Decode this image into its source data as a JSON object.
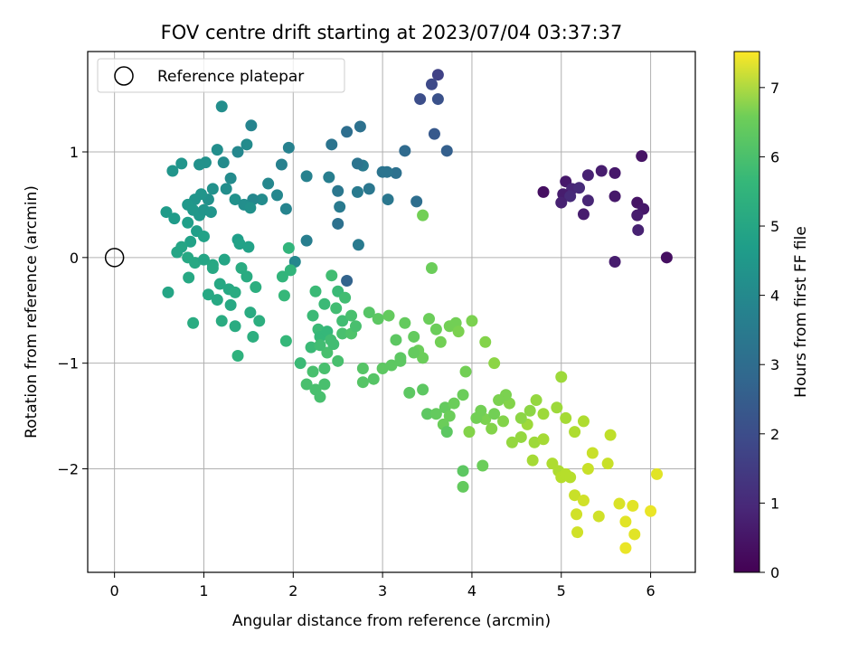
{
  "chart_data": {
    "type": "scatter",
    "title": "FOV centre drift starting at 2023/07/04 03:37:37",
    "xlabel": "Angular distance from reference (arcmin)",
    "ylabel": "Rotation from reference (arcmin)",
    "xlim": [
      -0.3,
      6.5
    ],
    "ylim": [
      -2.98,
      1.95
    ],
    "xticks": [
      0,
      1,
      2,
      3,
      4,
      5,
      6
    ],
    "yticks": [
      -2,
      -1,
      0,
      1
    ],
    "grid": true,
    "legend": {
      "placement": "top-left",
      "entries": [
        "Reference platepar"
      ]
    },
    "reference_point": {
      "x": 0,
      "y": 0
    },
    "colorbar": {
      "label": "Hours from first FF file",
      "range": [
        0,
        7.52
      ],
      "ticks": [
        0,
        1,
        2,
        3,
        4,
        5,
        6,
        7
      ],
      "colormap": "viridis"
    },
    "points": [
      [
        5.6,
        0.8,
        0.5
      ],
      [
        5.45,
        0.82,
        0.6
      ],
      [
        5.3,
        0.78,
        0.7
      ],
      [
        5.9,
        0.96,
        0.4
      ],
      [
        5.05,
        0.72,
        0.5
      ],
      [
        5.12,
        0.65,
        0.8
      ],
      [
        5.2,
        0.66,
        0.9
      ],
      [
        5.02,
        0.6,
        0.6
      ],
      [
        4.8,
        0.62,
        0.3
      ],
      [
        5.1,
        0.58,
        0.9
      ],
      [
        5.0,
        0.52,
        0.7
      ],
      [
        5.3,
        0.54,
        0.8
      ],
      [
        5.6,
        0.58,
        0.5
      ],
      [
        5.85,
        0.52,
        0.4
      ],
      [
        5.92,
        0.46,
        0.5
      ],
      [
        5.85,
        0.4,
        0.6
      ],
      [
        5.86,
        0.26,
        0.7
      ],
      [
        5.25,
        0.41,
        0.6
      ],
      [
        6.18,
        0.0,
        0.3
      ],
      [
        5.6,
        -0.04,
        0.6
      ],
      [
        3.62,
        1.73,
        1.5
      ],
      [
        3.55,
        1.64,
        1.7
      ],
      [
        3.42,
        1.5,
        1.8
      ],
      [
        3.62,
        1.5,
        1.9
      ],
      [
        3.58,
        1.17,
        2.1
      ],
      [
        3.72,
        1.01,
        2.3
      ],
      [
        3.25,
        1.01,
        2.6
      ],
      [
        3.38,
        0.53,
        2.7
      ],
      [
        3.15,
        0.8,
        2.8
      ],
      [
        3.05,
        0.81,
        2.9
      ],
      [
        3.0,
        0.81,
        2.9
      ],
      [
        3.06,
        0.55,
        3.0
      ],
      [
        2.85,
        0.65,
        3.0
      ],
      [
        2.72,
        0.62,
        3.1
      ],
      [
        2.78,
        0.87,
        3.1
      ],
      [
        2.72,
        0.89,
        2.9
      ],
      [
        2.75,
        1.24,
        2.8
      ],
      [
        2.6,
        1.19,
        2.7
      ],
      [
        2.43,
        1.07,
        2.9
      ],
      [
        2.52,
        0.48,
        3.1
      ],
      [
        2.5,
        0.32,
        2.8
      ],
      [
        2.5,
        0.63,
        3.0
      ],
      [
        2.4,
        0.76,
        3.2
      ],
      [
        2.73,
        0.12,
        3.1
      ],
      [
        2.6,
        -0.22,
        2.4
      ],
      [
        2.15,
        0.16,
        3.2
      ],
      [
        2.02,
        -0.04,
        3.5
      ],
      [
        2.15,
        0.77,
        3.3
      ],
      [
        1.95,
        1.04,
        3.3
      ],
      [
        1.87,
        0.88,
        3.3
      ],
      [
        1.92,
        0.46,
        3.4
      ],
      [
        1.82,
        0.59,
        3.5
      ],
      [
        1.72,
        0.7,
        3.5
      ],
      [
        1.65,
        0.55,
        3.6
      ],
      [
        1.55,
        0.55,
        3.5
      ],
      [
        1.53,
        1.25,
        3.4
      ],
      [
        1.48,
        1.07,
        3.6
      ],
      [
        1.38,
        1.0,
        3.5
      ],
      [
        1.2,
        1.43,
        3.7
      ],
      [
        1.15,
        1.02,
        3.7
      ],
      [
        1.22,
        0.9,
        3.6
      ],
      [
        1.3,
        0.75,
        3.6
      ],
      [
        1.25,
        0.65,
        3.7
      ],
      [
        1.35,
        0.55,
        3.8
      ],
      [
        1.45,
        0.5,
        3.7
      ],
      [
        1.52,
        0.47,
        3.8
      ],
      [
        1.1,
        0.65,
        3.8
      ],
      [
        1.05,
        0.55,
        3.8
      ],
      [
        0.97,
        0.6,
        3.9
      ],
      [
        0.9,
        0.55,
        3.9
      ],
      [
        0.82,
        0.5,
        4.0
      ],
      [
        0.88,
        0.45,
        4.0
      ],
      [
        0.95,
        0.4,
        4.0
      ],
      [
        1.0,
        0.45,
        3.9
      ],
      [
        1.08,
        0.43,
        3.9
      ],
      [
        1.02,
        0.9,
        3.8
      ],
      [
        0.95,
        0.88,
        3.8
      ],
      [
        0.75,
        0.89,
        3.9
      ],
      [
        0.65,
        0.82,
        3.9
      ],
      [
        0.58,
        0.43,
        4.1
      ],
      [
        0.67,
        0.37,
        4.1
      ],
      [
        0.82,
        0.33,
        4.2
      ],
      [
        0.92,
        0.25,
        4.2
      ],
      [
        1.0,
        0.2,
        4.3
      ],
      [
        0.85,
        0.15,
        4.3
      ],
      [
        0.75,
        0.1,
        4.4
      ],
      [
        0.7,
        0.05,
        4.4
      ],
      [
        0.82,
        0.0,
        4.5
      ],
      [
        0.9,
        -0.05,
        4.5
      ],
      [
        1.0,
        -0.02,
        4.4
      ],
      [
        1.1,
        -0.07,
        4.5
      ],
      [
        1.23,
        -0.02,
        4.4
      ],
      [
        1.38,
        0.17,
        4.2
      ],
      [
        1.4,
        0.13,
        4.3
      ],
      [
        1.5,
        0.1,
        4.3
      ],
      [
        1.42,
        -0.1,
        4.6
      ],
      [
        1.48,
        -0.18,
        4.6
      ],
      [
        1.58,
        -0.28,
        4.7
      ],
      [
        1.52,
        -0.52,
        4.6
      ],
      [
        1.62,
        -0.6,
        4.7
      ],
      [
        1.55,
        -0.75,
        4.7
      ],
      [
        1.35,
        -0.65,
        4.6
      ],
      [
        1.2,
        -0.6,
        4.6
      ],
      [
        1.38,
        -0.93,
        4.8
      ],
      [
        1.05,
        -0.35,
        4.5
      ],
      [
        1.15,
        -0.4,
        4.5
      ],
      [
        1.3,
        -0.45,
        4.5
      ],
      [
        1.18,
        -0.25,
        4.5
      ],
      [
        0.88,
        -0.62,
        4.6
      ],
      [
        0.6,
        -0.33,
        4.4
      ],
      [
        0.83,
        -0.19,
        4.5
      ],
      [
        1.28,
        -0.3,
        4.5
      ],
      [
        1.35,
        -0.33,
        4.6
      ],
      [
        1.1,
        -0.1,
        4.5
      ],
      [
        1.95,
        0.09,
        4.9
      ],
      [
        1.97,
        -0.12,
        4.9
      ],
      [
        1.88,
        -0.18,
        4.9
      ],
      [
        1.9,
        -0.36,
        5.0
      ],
      [
        1.92,
        -0.79,
        5.0
      ],
      [
        2.08,
        -1.0,
        5.1
      ],
      [
        2.2,
        -0.85,
        5.1
      ],
      [
        2.22,
        -0.55,
        5.1
      ],
      [
        2.28,
        -0.68,
        5.1
      ],
      [
        2.3,
        -0.75,
        5.0
      ],
      [
        2.38,
        -0.7,
        5.0
      ],
      [
        2.25,
        -0.32,
        5.1
      ],
      [
        2.35,
        -0.44,
        5.1
      ],
      [
        2.5,
        -0.32,
        5.1
      ],
      [
        2.58,
        -0.38,
        5.2
      ],
      [
        2.43,
        -0.17,
        5.2
      ],
      [
        2.48,
        -0.48,
        5.2
      ],
      [
        2.55,
        -0.6,
        5.2
      ],
      [
        2.42,
        -0.78,
        5.2
      ],
      [
        2.38,
        -0.9,
        5.3
      ],
      [
        2.5,
        -0.98,
        5.3
      ],
      [
        2.3,
        -0.83,
        5.2
      ],
      [
        2.35,
        -1.05,
        5.3
      ],
      [
        2.22,
        -1.08,
        5.3
      ],
      [
        2.15,
        -1.2,
        5.3
      ],
      [
        2.25,
        -1.25,
        5.3
      ],
      [
        2.3,
        -1.32,
        5.3
      ],
      [
        2.35,
        -1.2,
        5.3
      ],
      [
        2.45,
        -0.82,
        5.2
      ],
      [
        2.55,
        -0.72,
        5.3
      ],
      [
        2.65,
        -0.72,
        5.4
      ],
      [
        2.78,
        -1.05,
        5.5
      ],
      [
        2.78,
        -1.18,
        5.5
      ],
      [
        2.9,
        -1.15,
        5.5
      ],
      [
        2.85,
        -0.52,
        5.5
      ],
      [
        2.95,
        -0.58,
        5.6
      ],
      [
        3.07,
        -0.55,
        5.7
      ],
      [
        3.0,
        -1.05,
        5.6
      ],
      [
        3.1,
        -1.02,
        5.6
      ],
      [
        3.2,
        -0.95,
        5.6
      ],
      [
        3.15,
        -0.78,
        5.6
      ],
      [
        3.25,
        -0.62,
        5.7
      ],
      [
        3.35,
        -0.75,
        5.7
      ],
      [
        3.4,
        -0.88,
        5.8
      ],
      [
        3.45,
        -0.95,
        5.8
      ],
      [
        3.52,
        -0.58,
        5.8
      ],
      [
        3.6,
        -0.68,
        5.8
      ],
      [
        3.65,
        -0.8,
        5.9
      ],
      [
        3.75,
        -0.65,
        5.9
      ],
      [
        3.82,
        -0.62,
        5.9
      ],
      [
        3.85,
        -0.7,
        6.0
      ],
      [
        4.0,
        -0.6,
        6.0
      ],
      [
        4.15,
        -0.8,
        6.1
      ],
      [
        4.25,
        -1.0,
        6.2
      ],
      [
        3.3,
        -1.28,
        5.6
      ],
      [
        3.45,
        -1.25,
        5.6
      ],
      [
        3.5,
        -1.48,
        5.6
      ],
      [
        3.6,
        -1.48,
        5.7
      ],
      [
        3.7,
        -1.42,
        5.7
      ],
      [
        3.68,
        -1.58,
        5.8
      ],
      [
        3.75,
        -1.5,
        5.8
      ],
      [
        3.8,
        -1.38,
        5.8
      ],
      [
        3.9,
        -1.3,
        5.8
      ],
      [
        3.93,
        -1.08,
        5.9
      ],
      [
        3.97,
        -1.65,
        6.1
      ],
      [
        3.9,
        -2.02,
        5.6
      ],
      [
        3.9,
        -2.17,
        5.7
      ],
      [
        4.12,
        -1.97,
        5.8
      ],
      [
        3.72,
        -1.65,
        5.6
      ],
      [
        4.15,
        -1.53,
        6.0
      ],
      [
        4.22,
        -1.62,
        6.1
      ],
      [
        4.35,
        -1.55,
        6.1
      ],
      [
        4.45,
        -1.75,
        6.3
      ],
      [
        4.55,
        -1.7,
        6.3
      ],
      [
        4.62,
        -1.58,
        6.4
      ],
      [
        4.7,
        -1.75,
        6.4
      ],
      [
        4.8,
        -1.72,
        6.5
      ],
      [
        4.68,
        -1.92,
        6.5
      ],
      [
        4.9,
        -1.95,
        6.6
      ],
      [
        4.97,
        -2.02,
        6.6
      ],
      [
        5.0,
        -2.08,
        6.7
      ],
      [
        5.05,
        -2.05,
        6.7
      ],
      [
        5.1,
        -2.08,
        6.7
      ],
      [
        5.15,
        -2.25,
        6.9
      ],
      [
        5.17,
        -2.43,
        7.0
      ],
      [
        5.18,
        -2.6,
        7.0
      ],
      [
        5.25,
        -2.3,
        7.0
      ],
      [
        5.3,
        -2.0,
        6.9
      ],
      [
        5.35,
        -1.85,
        6.9
      ],
      [
        5.42,
        -2.45,
        7.0
      ],
      [
        5.52,
        -1.95,
        6.9
      ],
      [
        5.55,
        -1.68,
        6.8
      ],
      [
        5.65,
        -2.33,
        7.1
      ],
      [
        5.72,
        -2.5,
        7.2
      ],
      [
        5.72,
        -2.75,
        7.3
      ],
      [
        5.8,
        -2.35,
        7.2
      ],
      [
        5.82,
        -2.62,
        7.2
      ],
      [
        6.0,
        -2.4,
        7.3
      ],
      [
        6.07,
        -2.05,
        7.2
      ],
      [
        5.25,
        -1.55,
        6.6
      ],
      [
        5.15,
        -1.65,
        6.6
      ],
      [
        5.05,
        -1.52,
        6.5
      ],
      [
        5.0,
        -1.13,
        6.4
      ],
      [
        4.95,
        -1.42,
        6.4
      ],
      [
        4.8,
        -1.48,
        6.4
      ],
      [
        4.72,
        -1.35,
        6.3
      ],
      [
        4.65,
        -1.45,
        6.2
      ],
      [
        4.55,
        -1.52,
        6.2
      ],
      [
        4.42,
        -1.38,
        6.1
      ],
      [
        4.38,
        -1.3,
        6.0
      ],
      [
        4.3,
        -1.35,
        6.0
      ],
      [
        4.25,
        -1.48,
        5.9
      ],
      [
        4.1,
        -1.45,
        5.9
      ],
      [
        4.05,
        -1.52,
        5.9
      ],
      [
        3.55,
        -0.1,
        5.8
      ],
      [
        3.45,
        0.4,
        5.9
      ],
      [
        3.2,
        -0.98,
        5.6
      ],
      [
        3.35,
        -0.9,
        5.7
      ],
      [
        2.65,
        -0.55,
        5.3
      ],
      [
        2.7,
        -0.65,
        5.3
      ]
    ]
  }
}
